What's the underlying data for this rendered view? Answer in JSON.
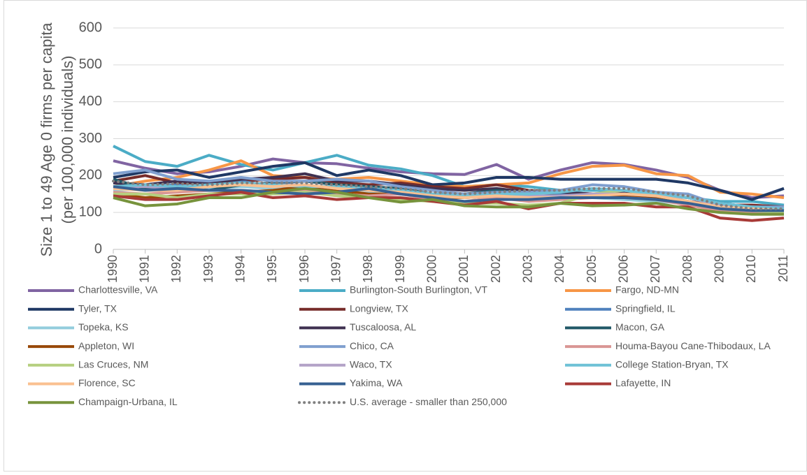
{
  "chart_data": {
    "type": "line",
    "ylabel": [
      "Size 1 to 49 Age 0 firms per capita",
      "(per 100,000 individuals)"
    ],
    "categories": [
      1990,
      1991,
      1992,
      1993,
      1994,
      1995,
      1996,
      1997,
      1998,
      1999,
      2000,
      2001,
      2002,
      2003,
      2004,
      2005,
      2006,
      2007,
      2008,
      2009,
      2010,
      2011
    ],
    "ylim": [
      0,
      600
    ],
    "yticks": [
      0,
      100,
      200,
      300,
      400,
      500,
      600
    ],
    "grid": true,
    "legend": "bottom",
    "series": [
      {
        "name": "Charlottesville, VA",
        "color": "#8064a2",
        "values": [
          240,
          220,
          205,
          210,
          225,
          245,
          235,
          232,
          220,
          210,
          205,
          203,
          230,
          190,
          215,
          235,
          230,
          215,
          195,
          160,
          140,
          145
        ]
      },
      {
        "name": "Burlington-South Burlington, VT",
        "color": "#4bacc6",
        "values": [
          280,
          238,
          225,
          255,
          230,
          215,
          235,
          255,
          228,
          218,
          200,
          170,
          175,
          170,
          160,
          160,
          160,
          150,
          140,
          130,
          130,
          120
        ]
      },
      {
        "name": "Fargo, ND-MN",
        "color": "#f79646",
        "values": [
          170,
          185,
          195,
          215,
          240,
          200,
          195,
          190,
          195,
          185,
          175,
          170,
          175,
          180,
          205,
          225,
          228,
          205,
          200,
          155,
          150,
          140
        ]
      },
      {
        "name": "Tyler, TX",
        "color": "#1f3864",
        "values": [
          195,
          210,
          215,
          195,
          210,
          225,
          235,
          200,
          215,
          200,
          175,
          180,
          195,
          195,
          190,
          190,
          190,
          190,
          180,
          160,
          135,
          165
        ]
      },
      {
        "name": "Longview, TX",
        "color": "#772c2a",
        "values": [
          185,
          200,
          180,
          180,
          185,
          190,
          195,
          180,
          175,
          180,
          170,
          165,
          175,
          160,
          155,
          150,
          150,
          145,
          130,
          120,
          120,
          115
        ]
      },
      {
        "name": "Springfield, IL",
        "color": "#4f81bd",
        "values": [
          180,
          170,
          175,
          165,
          185,
          170,
          165,
          170,
          165,
          160,
          150,
          145,
          150,
          145,
          150,
          145,
          145,
          140,
          130,
          115,
          110,
          110
        ]
      },
      {
        "name": "Topeka, KS",
        "color": "#93cddd",
        "values": [
          160,
          165,
          160,
          165,
          170,
          165,
          160,
          160,
          155,
          150,
          145,
          140,
          145,
          140,
          140,
          140,
          135,
          130,
          125,
          115,
          110,
          110
        ]
      },
      {
        "name": "Tuscaloosa, AL",
        "color": "#3f3151",
        "values": [
          180,
          175,
          185,
          180,
          190,
          195,
          205,
          185,
          185,
          175,
          165,
          160,
          165,
          155,
          155,
          150,
          155,
          150,
          140,
          125,
          115,
          115
        ]
      },
      {
        "name": "Macon, GA",
        "color": "#215968",
        "values": [
          190,
          165,
          170,
          160,
          175,
          180,
          185,
          175,
          170,
          165,
          150,
          150,
          160,
          150,
          145,
          145,
          140,
          140,
          130,
          115,
          110,
          105
        ]
      },
      {
        "name": "Appleton, WI",
        "color": "#984807",
        "values": [
          150,
          140,
          145,
          150,
          155,
          160,
          170,
          160,
          150,
          150,
          140,
          140,
          145,
          135,
          140,
          140,
          145,
          140,
          125,
          110,
          105,
          110
        ]
      },
      {
        "name": "Chico, CA",
        "color": "#7f9fcf",
        "values": [
          205,
          215,
          190,
          185,
          195,
          185,
          185,
          190,
          185,
          170,
          160,
          150,
          155,
          155,
          160,
          175,
          170,
          155,
          150,
          120,
          115,
          115
        ]
      },
      {
        "name": "Houma-Bayou Cane-Thibodaux, LA",
        "color": "#d99694",
        "values": [
          155,
          150,
          155,
          160,
          160,
          155,
          160,
          150,
          145,
          150,
          135,
          130,
          140,
          130,
          135,
          140,
          140,
          135,
          120,
          105,
          100,
          100
        ]
      },
      {
        "name": "Las Cruces, NM",
        "color": "#b5cf7f",
        "values": [
          150,
          150,
          140,
          150,
          150,
          150,
          155,
          145,
          140,
          135,
          130,
          125,
          125,
          120,
          125,
          150,
          160,
          145,
          130,
          110,
          105,
          100
        ]
      },
      {
        "name": "Waco, TX",
        "color": "#b3a2c7",
        "values": [
          170,
          170,
          165,
          170,
          180,
          175,
          175,
          165,
          160,
          155,
          150,
          145,
          150,
          145,
          145,
          150,
          150,
          145,
          140,
          120,
          115,
          110
        ]
      },
      {
        "name": "College Station-Bryan, TX",
        "color": "#6ec1d6",
        "values": [
          170,
          175,
          170,
          175,
          180,
          175,
          170,
          170,
          165,
          160,
          150,
          145,
          150,
          150,
          155,
          165,
          160,
          150,
          140,
          125,
          115,
          110
        ]
      },
      {
        "name": "Florence, SC",
        "color": "#fac090",
        "values": [
          165,
          160,
          160,
          170,
          175,
          170,
          175,
          165,
          160,
          155,
          145,
          140,
          145,
          140,
          140,
          145,
          150,
          145,
          130,
          115,
          110,
          105
        ]
      },
      {
        "name": "Yakima, WA",
        "color": "#366092",
        "values": [
          170,
          160,
          165,
          160,
          160,
          155,
          150,
          155,
          165,
          150,
          140,
          130,
          135,
          135,
          140,
          140,
          140,
          135,
          125,
          110,
          105,
          105
        ]
      },
      {
        "name": "Lafayette, IN",
        "color": "#a83a37",
        "values": [
          145,
          135,
          135,
          145,
          155,
          140,
          145,
          135,
          140,
          140,
          130,
          120,
          130,
          110,
          125,
          125,
          125,
          115,
          115,
          85,
          78,
          85
        ]
      },
      {
        "name": "Champaign-Urbana, IL",
        "color": "#77933c",
        "values": [
          140,
          118,
          123,
          140,
          140,
          155,
          165,
          155,
          140,
          128,
          135,
          118,
          115,
          115,
          125,
          118,
          120,
          125,
          110,
          100,
          95,
          95
        ]
      },
      {
        "name": "U.S. average - smaller than 250,000",
        "color": "#808080",
        "dotted": true,
        "values": [
          185,
          175,
          178,
          175,
          180,
          180,
          180,
          175,
          170,
          165,
          155,
          150,
          155,
          160,
          160,
          165,
          165,
          155,
          145,
          120,
          110,
          110
        ]
      }
    ]
  }
}
